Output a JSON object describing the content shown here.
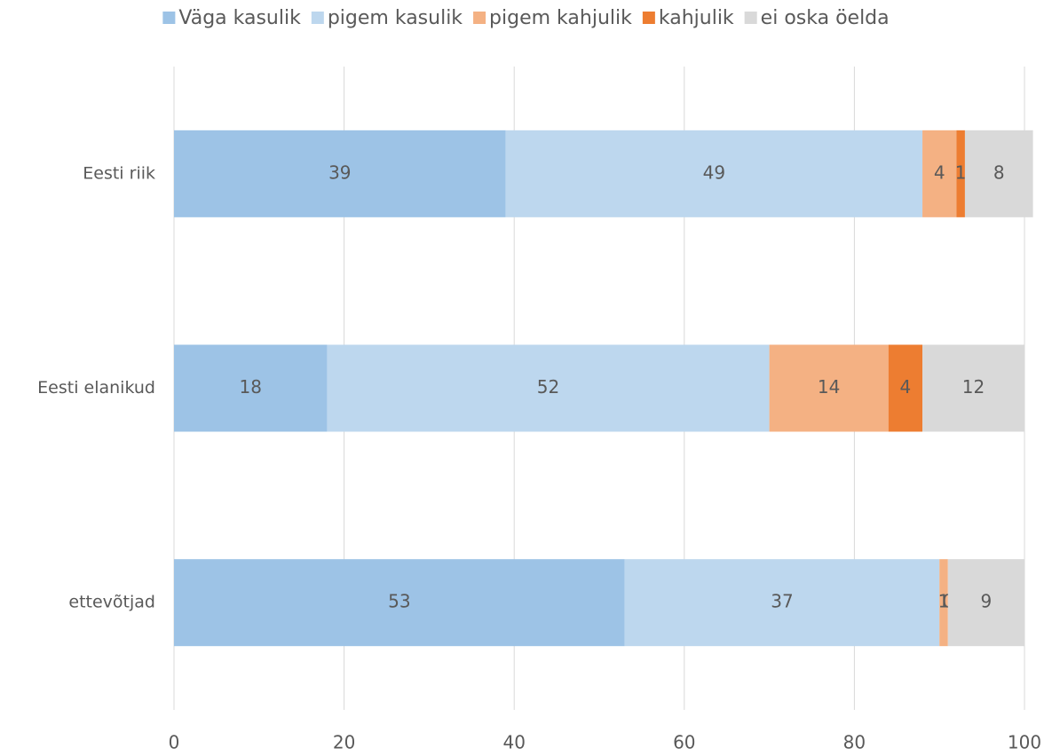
{
  "chart_data": {
    "type": "bar",
    "orientation": "horizontal",
    "stacked": true,
    "categories": [
      "Eesti riik",
      "Eesti elanikud",
      "ettevõtjad"
    ],
    "series": [
      {
        "name": "Väga kasulik",
        "color": "#9dc3e6",
        "values": [
          39,
          18,
          53
        ]
      },
      {
        "name": "pigem kasulik",
        "color": "#bdd7ee",
        "values": [
          49,
          52,
          37
        ]
      },
      {
        "name": "pigem kahjulik",
        "color": "#f4b183",
        "values": [
          4,
          14,
          1
        ]
      },
      {
        "name": "kahjulik",
        "color": "#ed7d31",
        "values": [
          1,
          4,
          0
        ]
      },
      {
        "name": "ei oska öelda",
        "color": "#d9d9d9",
        "values": [
          8,
          12,
          9
        ]
      }
    ],
    "xlim": [
      0,
      100
    ],
    "xticks": [
      0,
      20,
      40,
      60,
      80,
      100
    ],
    "grid": true,
    "legend": "top"
  }
}
